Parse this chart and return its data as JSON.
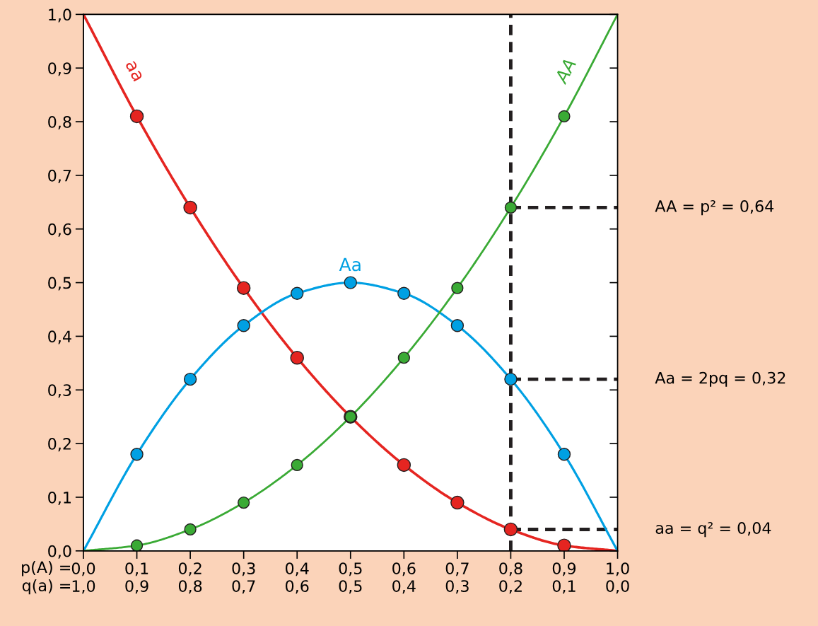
{
  "chart_data": {
    "type": "line",
    "xlim": [
      0,
      1
    ],
    "ylim": [
      0,
      1
    ],
    "xlabel": "p(A) =",
    "x2label": "q(a) =",
    "xticks": [
      {
        "value": 0,
        "label": "0,0"
      },
      {
        "value": 0.1,
        "label": "0,1"
      },
      {
        "value": 0.2,
        "label": "0,2"
      },
      {
        "value": 0.3,
        "label": "0,3"
      },
      {
        "value": 0.4,
        "label": "0,4"
      },
      {
        "value": 0.5,
        "label": "0,5"
      },
      {
        "value": 0.6,
        "label": "0,6"
      },
      {
        "value": 0.7,
        "label": "0,7"
      },
      {
        "value": 0.8,
        "label": "0,8"
      },
      {
        "value": 0.9,
        "label": "0,9"
      },
      {
        "value": 1,
        "label": "1,0"
      }
    ],
    "x2lim": [
      1,
      0
    ],
    "x2ticks": [
      {
        "value": 1,
        "label": "1,0"
      },
      {
        "value": 0.9,
        "label": "0,9"
      },
      {
        "value": 0.8,
        "label": "0,8"
      },
      {
        "value": 0.7,
        "label": "0,7"
      },
      {
        "value": 0.6,
        "label": "0,6"
      },
      {
        "value": 0.5,
        "label": "0,5"
      },
      {
        "value": 0.4,
        "label": "0,4"
      },
      {
        "value": 0.3,
        "label": "0,3"
      },
      {
        "value": 0.2,
        "label": "0,2"
      },
      {
        "value": 0.1,
        "label": "0,1"
      },
      {
        "value": 0,
        "label": "0,0"
      }
    ],
    "yticks": [
      {
        "value": 0,
        "label": "0,0"
      },
      {
        "value": 0.1,
        "label": "0,1"
      },
      {
        "value": 0.2,
        "label": "0,2"
      },
      {
        "value": 0.3,
        "label": "0,3"
      },
      {
        "value": 0.4,
        "label": "0,4"
      },
      {
        "value": 0.5,
        "label": "0,5"
      },
      {
        "value": 0.6,
        "label": "0,6"
      },
      {
        "value": 0.7,
        "label": "0,7"
      },
      {
        "value": 0.8,
        "label": "0,8"
      },
      {
        "value": 0.9,
        "label": "0,9"
      },
      {
        "value": 1,
        "label": "1,0"
      }
    ],
    "grid": false,
    "legend": false,
    "series": [
      {
        "name": "aa",
        "marker": "none",
        "color": "#e52521",
        "x": [
          0,
          0.1,
          0.2,
          0.3,
          0.4,
          0.5,
          0.6,
          0.7,
          0.8,
          0.9,
          1
        ],
        "values": [
          1,
          0.81,
          0.64,
          0.49,
          0.36,
          0.25,
          0.16,
          0.09,
          0.04,
          0.01,
          0
        ]
      },
      {
        "name": "Aa",
        "marker": "none",
        "color": "#00a0e3",
        "x": [
          0,
          0.1,
          0.2,
          0.3,
          0.4,
          0.5,
          0.6,
          0.7,
          0.8,
          0.9,
          1
        ],
        "values": [
          0,
          0.18,
          0.32,
          0.42,
          0.48,
          0.5,
          0.48,
          0.42,
          0.32,
          0.18,
          0
        ]
      },
      {
        "name": "AA",
        "marker": "none",
        "color": "#3aaa35",
        "x": [
          0,
          0.1,
          0.2,
          0.3,
          0.4,
          0.5,
          0.6,
          0.7,
          0.8,
          0.9,
          1
        ],
        "values": [
          0,
          0.01,
          0.04,
          0.09,
          0.16,
          0.25,
          0.36,
          0.49,
          0.64,
          0.81,
          1
        ]
      },
      {
        "type": "scatter",
        "marker": "circle",
        "color": "#e52521",
        "x": [
          0.1,
          0.2,
          0.3,
          0.4,
          0.5,
          0.6,
          0.7,
          0.8,
          0.9
        ],
        "values": [
          0.81,
          0.64,
          0.49,
          0.36,
          0.25,
          0.16,
          0.09,
          0.04,
          0.01
        ]
      },
      {
        "type": "scatter",
        "marker": "circle",
        "color": "#00a0e3",
        "x": [
          0.1,
          0.2,
          0.3,
          0.4,
          0.5,
          0.6,
          0.7,
          0.8,
          0.9
        ],
        "values": [
          0.18,
          0.32,
          0.42,
          0.48,
          0.5,
          0.48,
          0.42,
          0.32,
          0.18
        ]
      },
      {
        "type": "scatter",
        "marker": "circle",
        "color": "#3aaa35",
        "x": [
          0.1,
          0.2,
          0.3,
          0.4,
          0.5,
          0.6,
          0.7,
          0.8,
          0.9
        ],
        "values": [
          0.01,
          0.04,
          0.09,
          0.16,
          0.25,
          0.36,
          0.49,
          0.64,
          0.81
        ]
      }
    ],
    "ref_lines": [
      {
        "axis": "x",
        "value": 0.8,
        "color": "#231f20",
        "line_style": "dashed"
      },
      {
        "axis": "y",
        "value": 0.64,
        "label": "AA = p² = 0,64",
        "color": "#231f20",
        "line_style": "dashed"
      },
      {
        "axis": "y",
        "value": 0.32,
        "label": "Aa = 2pq = 0,32",
        "color": "#231f20",
        "line_style": "dashed"
      },
      {
        "axis": "y",
        "value": 0.04,
        "label": "aa = q² = 0,04",
        "color": "#231f20",
        "line_style": "dashed"
      }
    ]
  }
}
